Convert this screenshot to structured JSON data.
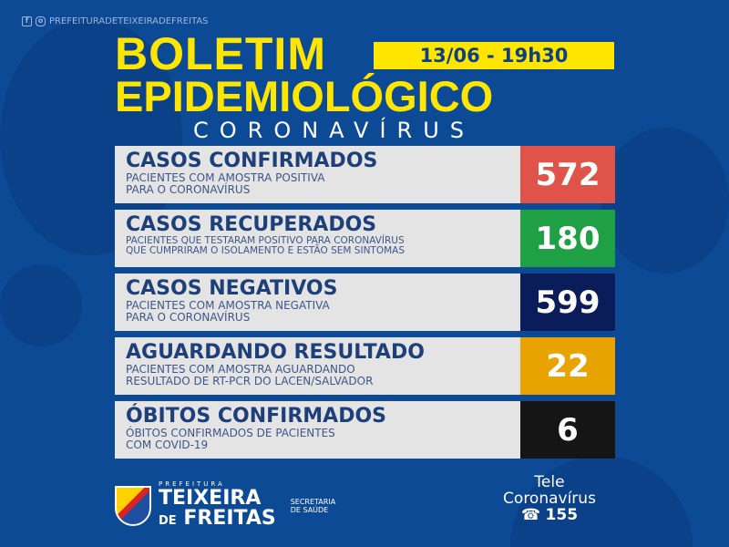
{
  "social": {
    "handle": "PREFEITURADETEIXEIRADEFREITAS",
    "icons": [
      "facebook-icon",
      "instagram-icon"
    ]
  },
  "header": {
    "title_line1": "BOLETIM",
    "date": "13/06 - 19h30",
    "title_line2": "EPIDEMIOLÓGICO",
    "subtitle": "CORONAVÍRUS"
  },
  "rows": [
    {
      "title": "CASOS CONFIRMADOS",
      "desc1": "PACIENTES COM AMOSTRA POSITIVA",
      "desc2": "PARA O CORONAVÍRUS",
      "value": "572",
      "color": "#e0534b"
    },
    {
      "title": "CASOS RECUPERADOS",
      "desc1": "PACIENTES QUE TESTARAM POSITIVO PARA CORONAVÍRUS",
      "desc2": "QUE CUMPRIRAM O ISOLAMENTO E ESTÃO SEM SINTOMAS",
      "value": "180",
      "color": "#1fa045"
    },
    {
      "title": "CASOS NEGATIVOS",
      "desc1": "PACIENTES COM AMOSTRA NEGATIVA",
      "desc2": "PARA O CORONAVÍRUS",
      "value": "599",
      "color": "#0a1d5a"
    },
    {
      "title": "AGUARDANDO RESULTADO",
      "desc1": "PACIENTES COM AMOSTRA AGUARDANDO",
      "desc2": "RESULTADO DE RT-PCR DO LACEN/SALVADOR",
      "value": "22",
      "color": "#e8a300"
    },
    {
      "title": "ÓBITOS CONFIRMADOS",
      "desc1": "ÓBITOS CONFIRMADOS DE PACIENTES",
      "desc2": "COM COVID-19",
      "value": "6",
      "color": "#151515"
    }
  ],
  "footer": {
    "prefeitura": "PREFEITURA",
    "city1": "TEIXEIRA",
    "city2a": "DE",
    "city2b": "FREITAS",
    "secretaria1": "SECRETARIA",
    "secretaria2": "DE SAÚDE",
    "tele1": "Tele",
    "tele2": "Coronavírus",
    "phone": "155"
  }
}
